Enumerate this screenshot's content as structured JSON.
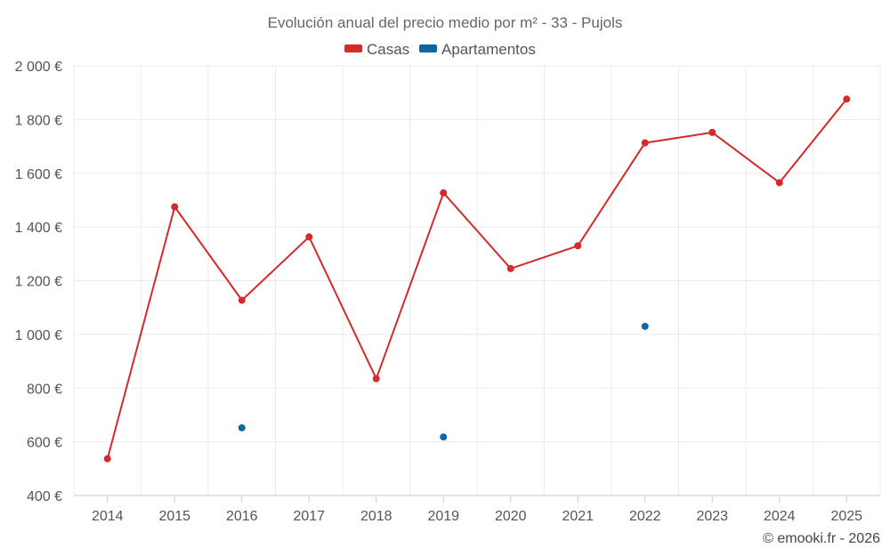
{
  "chart_data": {
    "type": "line",
    "title": "Evolución anual del precio medio por m² - 33 - Pujols",
    "x": [
      "2014",
      "2015",
      "2016",
      "2017",
      "2018",
      "2019",
      "2020",
      "2021",
      "2022",
      "2023",
      "2024",
      "2025"
    ],
    "series": [
      {
        "name": "Casas",
        "color": "#d42a2a",
        "values": [
          537,
          1475,
          1127,
          1363,
          835,
          1527,
          1245,
          1330,
          1713,
          1752,
          1565,
          1876
        ]
      },
      {
        "name": "Apartamentos",
        "color": "#0e66a3",
        "values": [
          null,
          null,
          652,
          null,
          null,
          618,
          null,
          null,
          1030,
          null,
          null,
          null
        ]
      }
    ],
    "ylim": [
      400,
      2000
    ],
    "yticks": [
      400,
      600,
      800,
      1000,
      1200,
      1400,
      1600,
      1800,
      2000
    ],
    "ytick_labels": [
      "400 €",
      "600 €",
      "800 €",
      "1 000 €",
      "1 200 €",
      "1 400 €",
      "1 600 €",
      "1 800 €",
      "2 000 €"
    ],
    "xlabel": "",
    "ylabel": "",
    "grid": true,
    "legend_position": "top-center"
  },
  "credit": "© emooki.fr - 2026"
}
